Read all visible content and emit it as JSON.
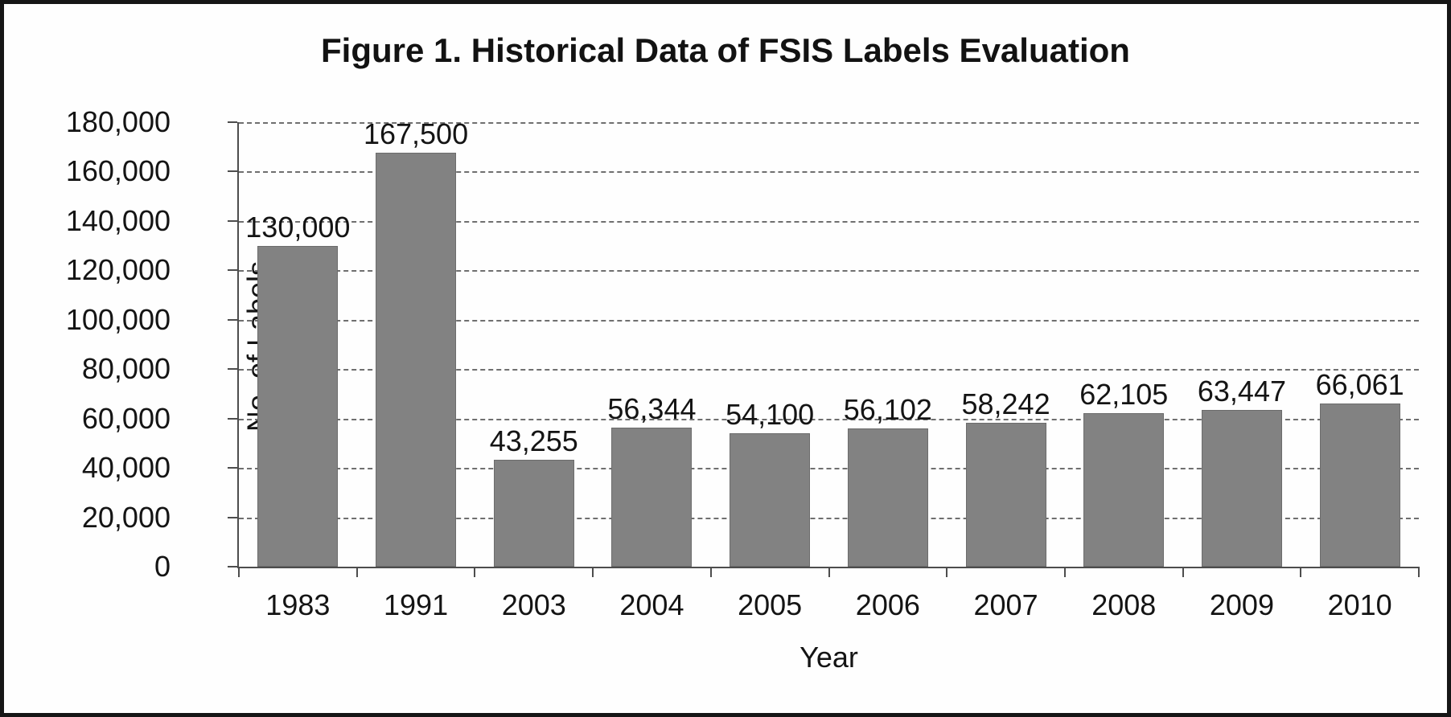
{
  "chart_data": {
    "type": "bar",
    "title": "Figure 1. Historical Data of FSIS Labels Evaluation",
    "xlabel": "Year",
    "ylabel": "No. of Labels",
    "categories": [
      "1983",
      "1991",
      "2003",
      "2004",
      "2005",
      "2006",
      "2007",
      "2008",
      "2009",
      "2010"
    ],
    "values": [
      130000,
      167500,
      43255,
      56344,
      54100,
      56102,
      58242,
      62105,
      63447,
      66061
    ],
    "value_labels": [
      "130,000",
      "167,500",
      "43,255",
      "56,344",
      "54,100",
      "56,102",
      "58,242",
      "62,105",
      "63,447",
      "66,061"
    ],
    "ylim": [
      0,
      180000
    ],
    "ytick_step": 20000,
    "ytick_labels": [
      "0",
      "20,000",
      "40,000",
      "60,000",
      "80,000",
      "100,000",
      "120,000",
      "140,000",
      "160,000",
      "180,000"
    ],
    "grid": "horizontal-dashed",
    "legend": "none",
    "colors": {
      "bar_fill": "#828282",
      "bar_edge": "#6c6c6c",
      "axis": "#4d4d4d",
      "gridline": "#6f6f6f",
      "text": "#141414",
      "background": "#fefefe",
      "frame_border": "#161616"
    }
  }
}
